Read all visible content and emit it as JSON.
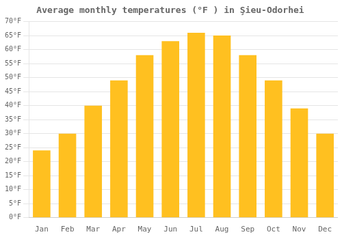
{
  "chart_data": {
    "type": "bar",
    "title": "Average monthly temperatures (°F ) in Şieu-Odorhei",
    "categories": [
      "Jan",
      "Feb",
      "Mar",
      "Apr",
      "May",
      "Jun",
      "Jul",
      "Aug",
      "Sep",
      "Oct",
      "Nov",
      "Dec"
    ],
    "values": [
      24,
      30,
      40,
      49,
      58,
      63,
      66,
      65,
      58,
      49,
      39,
      30
    ],
    "color": "#FFC020",
    "ylim": [
      0,
      70
    ],
    "yticks": [
      {
        "value": 0,
        "label": "0°F"
      },
      {
        "value": 5,
        "label": "5°F"
      },
      {
        "value": 10,
        "label": "10°F"
      },
      {
        "value": 15,
        "label": "15°F"
      },
      {
        "value": 20,
        "label": "20°F"
      },
      {
        "value": 25,
        "label": "25°F"
      },
      {
        "value": 30,
        "label": "30°F"
      },
      {
        "value": 35,
        "label": "35°F"
      },
      {
        "value": 40,
        "label": "40°F"
      },
      {
        "value": 45,
        "label": "45°F"
      },
      {
        "value": 50,
        "label": "50°F"
      },
      {
        "value": 55,
        "label": "55°F"
      },
      {
        "value": 60,
        "label": "60°F"
      },
      {
        "value": 65,
        "label": "65°F"
      },
      {
        "value": 70,
        "label": "70°F"
      }
    ],
    "grid": true
  }
}
